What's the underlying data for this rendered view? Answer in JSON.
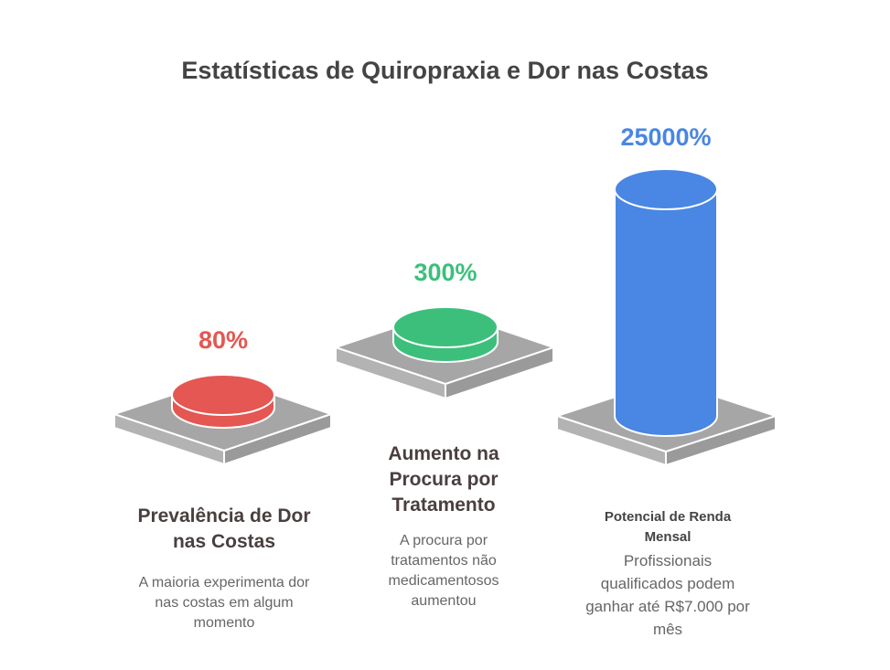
{
  "title": "Estatísticas de Quiropraxia e Dor nas Costas",
  "colors": {
    "red": "#e45752",
    "green": "#3dbf7c",
    "blue": "#4a86e3",
    "platform": "#a6a6a6"
  },
  "items": [
    {
      "value": "80%",
      "heading": "Prevalência de Dor nas Costas",
      "description": "A maioria experimenta dor nas costas em algum momento",
      "color": "#e45752"
    },
    {
      "value": "300%",
      "heading": "Aumento na Procura por Tratamento",
      "description": "A procura por tratamentos não medicamentosos aumentou",
      "color": "#3dbf7c"
    },
    {
      "value": "25000%",
      "heading": "Potencial de Renda Mensal",
      "description": "Profissionais qualificados podem ganhar até R$7.000 por mês",
      "color": "#4a86e3"
    }
  ]
}
